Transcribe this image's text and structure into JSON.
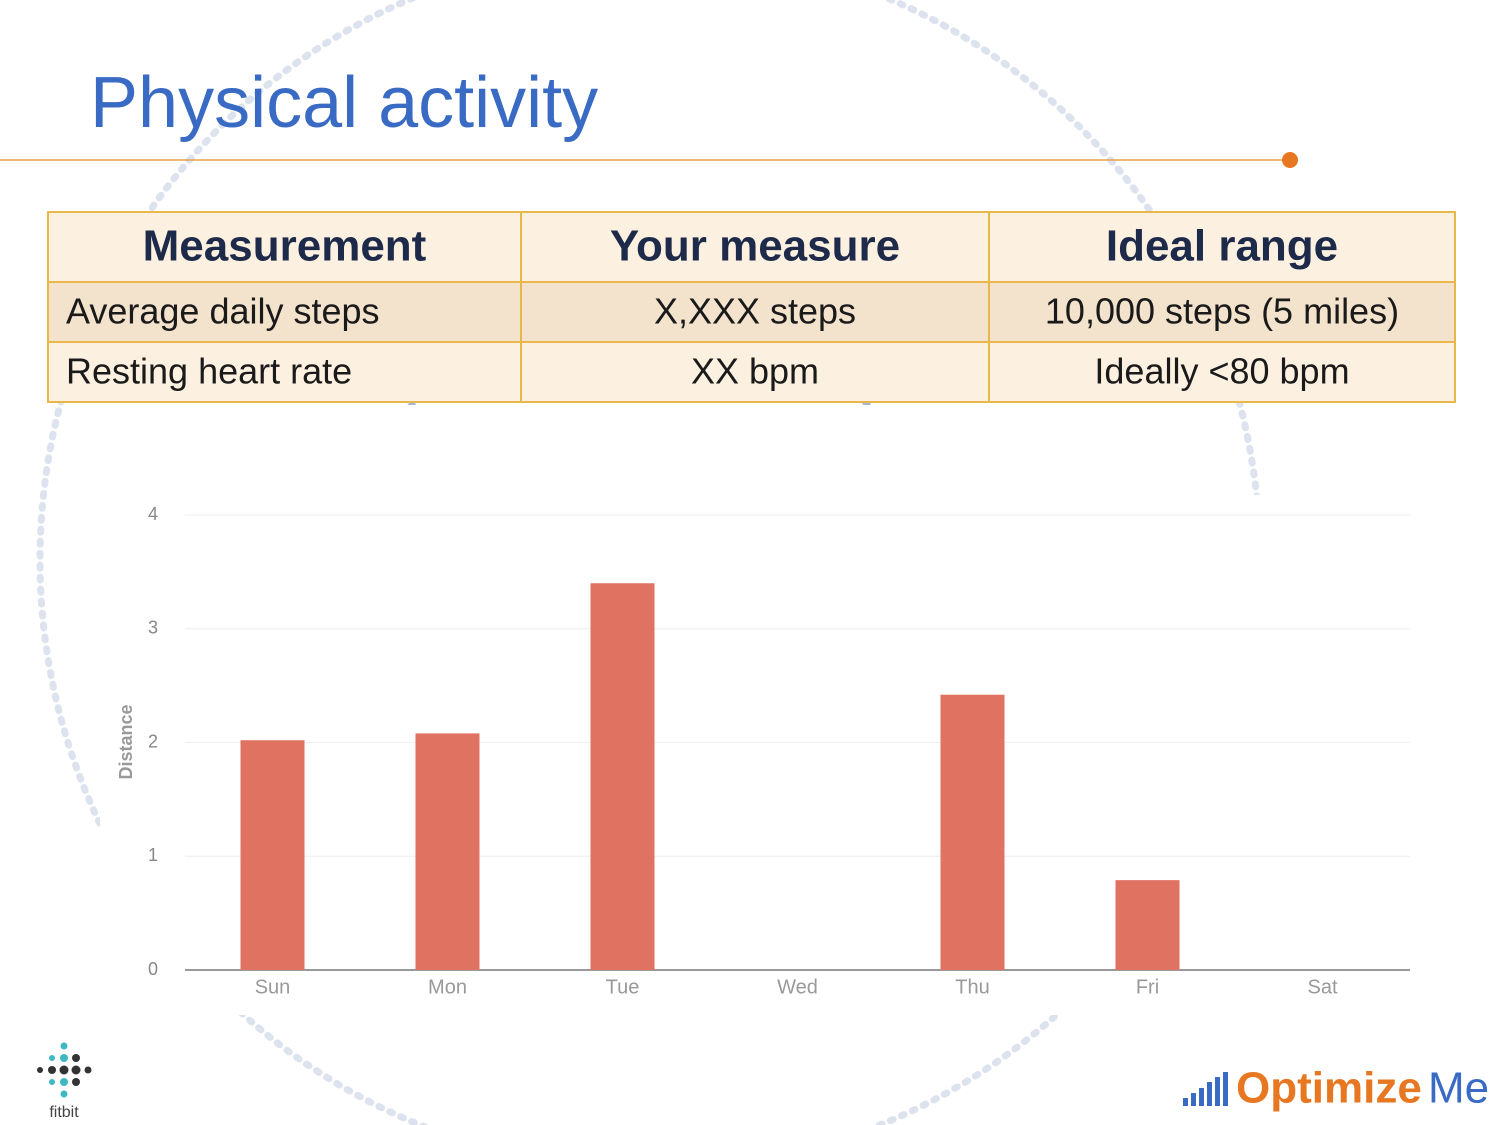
{
  "title": "Physical activity",
  "table": {
    "header": [
      "Measurement",
      "Your measure",
      "Ideal range"
    ],
    "rows": [
      [
        "Average daily steps",
        "X,XXX steps",
        "10,000 steps (5 miles)"
      ],
      [
        "Resting heart rate",
        "XX bpm",
        "Ideally <80 bpm"
      ]
    ]
  },
  "chart_data": {
    "type": "bar",
    "ylabel": "Distance",
    "categories": [
      "Sun",
      "Mon",
      "Tue",
      "Wed",
      "Thu",
      "Fri",
      "Sat"
    ],
    "values": [
      2.02,
      2.08,
      3.4,
      0,
      2.42,
      0.79,
      0
    ],
    "color": "#e07262",
    "ylim": [
      0,
      4
    ],
    "yticks": [
      0,
      1,
      2,
      3,
      4
    ],
    "grid": true
  },
  "logos": {
    "fitbit": "fitbit",
    "optimize": "Optimize",
    "me": "Me"
  }
}
